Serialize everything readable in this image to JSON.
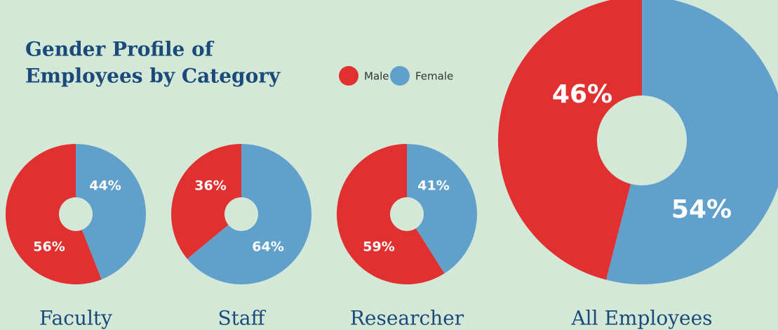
{
  "title": [
    "Gender Profile of",
    "Employees by Category"
  ],
  "chart_data": [
    {
      "type": "pie",
      "title": "Faculty",
      "categories": [
        "Male",
        "Female"
      ],
      "colors": [
        "#e03030",
        "#62a0cc"
      ],
      "values": [
        56,
        44
      ],
      "value_labels": [
        "56%",
        "44%"
      ]
    },
    {
      "type": "pie",
      "title": "Staff",
      "categories": [
        "Male",
        "Female"
      ],
      "colors": [
        "#e03030",
        "#62a0cc"
      ],
      "values": [
        36,
        64
      ],
      "value_labels": [
        "36%",
        "64%"
      ]
    },
    {
      "type": "pie",
      "title": "Researcher",
      "categories": [
        "Male",
        "Female"
      ],
      "colors": [
        "#e03030",
        "#62a0cc"
      ],
      "values": [
        59,
        41
      ],
      "value_labels": [
        "59%",
        "41%"
      ]
    },
    {
      "type": "pie",
      "title": "All Employees",
      "categories": [
        "Male",
        "Female"
      ],
      "colors": [
        "#e03030",
        "#62a0cc"
      ],
      "values": [
        46,
        54
      ],
      "value_labels": [
        "46%",
        "54%"
      ]
    }
  ]
}
